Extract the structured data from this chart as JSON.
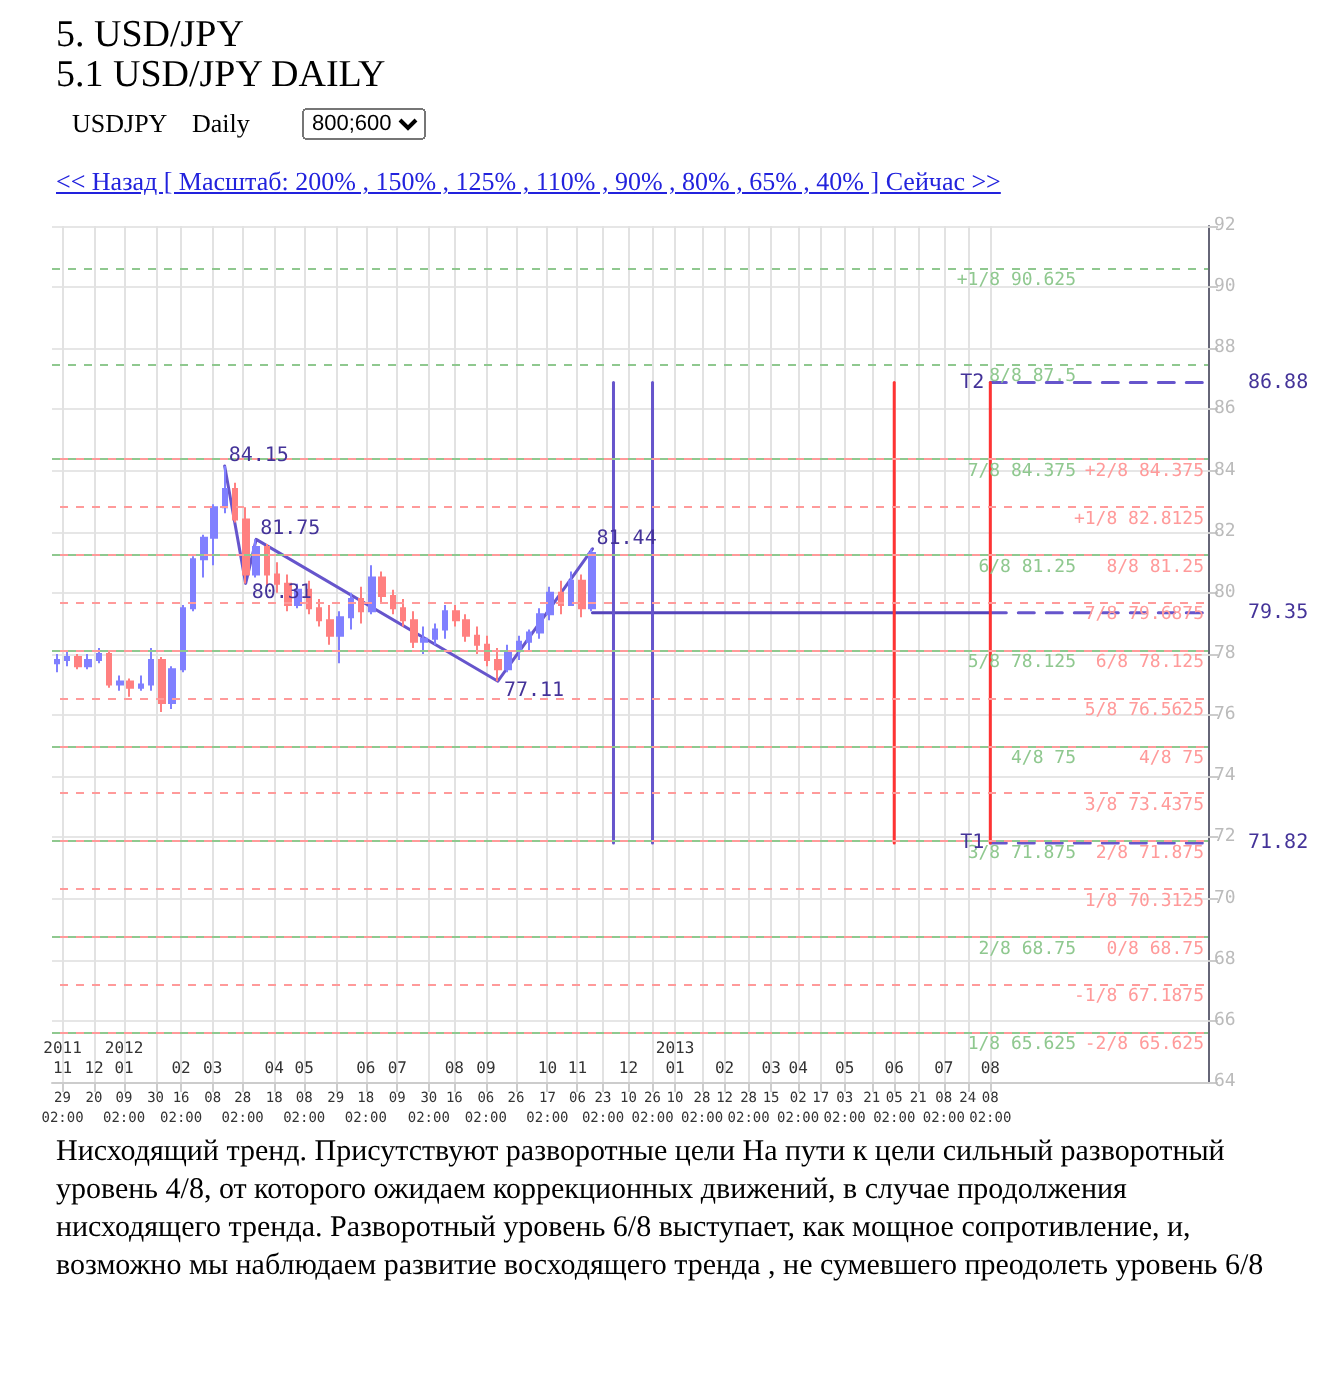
{
  "chart_data": {
    "type": "candlestick",
    "title": "5. USD/JPY",
    "subtitle": "5.1 USD/JPY DAILY",
    "annotations": [
      "USDJPY",
      "Daily",
      "800;600",
      "<< Назад [ Масштаб: 200% , 150% , 125% , 110% , 90% , 80% , 65% , 40% ] Сейчас >>",
      "Нисходящий тренд. Присутствуют разворотные цели На пути к цели сильный разворотный уровень 4/8, от которого ожидаем коррекционных движений, в случае продолжения нисходящего тренда. Разворотный уровень 6/8 выступает, как мощное сопротивление, и, возможно мы наблюдаем развитие восходящего тренда , не сумевшего преодолеть уровень 6/8",
      {
        "text": "84.15",
        "x": "2012-03-16",
        "y": 84.15
      },
      {
        "text": "80.31",
        "x": "2012-03-30",
        "y": 80.31
      },
      {
        "text": "81.75",
        "x": "2012-04-06",
        "y": 81.75
      },
      {
        "text": "77.11",
        "x": "2012-09-14",
        "y": 77.11
      },
      {
        "text": "81.44",
        "x": "2012-11-16",
        "y": 81.44
      },
      {
        "text": "T2",
        "x": "2013-08-08",
        "y": 86.88
      },
      {
        "text": "T1",
        "x": "2013-08-08",
        "y": 71.82
      },
      {
        "text": "86.88",
        "x": "2013-12-31",
        "y": 86.88
      },
      {
        "text": "79.35",
        "x": "2013-12-31",
        "y": 79.35
      },
      {
        "text": "71.82",
        "x": "2013-12-31",
        "y": 71.82
      }
    ],
    "xlim": [
      "2011-11-22",
      "2013-12-31"
    ],
    "xticks": [
      {
        "value": "2011-11-29",
        "label": "29\n02:00"
      },
      {
        "value": "2011-12-20",
        "label": "20"
      },
      {
        "value": "2012-01-09",
        "label": "09\n02:00"
      },
      {
        "value": "2012-01-30",
        "label": "30"
      },
      {
        "value": "2012-02-16",
        "label": "16\n02:00"
      },
      {
        "value": "2012-03-08",
        "label": "08"
      },
      {
        "value": "2012-03-28",
        "label": "28\n02:00"
      },
      {
        "value": "2012-04-18",
        "label": "18"
      },
      {
        "value": "2012-05-08",
        "label": "08\n02:00"
      },
      {
        "value": "2012-05-29",
        "label": "29"
      },
      {
        "value": "2012-06-18",
        "label": "18\n02:00"
      },
      {
        "value": "2012-07-09",
        "label": "09"
      },
      {
        "value": "2012-07-30",
        "label": "30\n02:00"
      },
      {
        "value": "2012-08-16",
        "label": "16"
      },
      {
        "value": "2012-09-06",
        "label": "06\n02:00"
      },
      {
        "value": "2012-09-26",
        "label": "26"
      },
      {
        "value": "2012-10-17",
        "label": "17\n02:00"
      },
      {
        "value": "2012-11-06",
        "label": "06"
      },
      {
        "value": "2012-11-23",
        "label": "23\n02:00"
      },
      {
        "value": "2012-12-10",
        "label": "10"
      },
      {
        "value": "2012-12-26",
        "label": "26\n02:00"
      },
      {
        "value": "2013-01-10",
        "label": "10"
      },
      {
        "value": "2013-01-28",
        "label": "28\n02:00"
      },
      {
        "value": "2013-02-12",
        "label": "12"
      },
      {
        "value": "2013-02-28",
        "label": "28\n02:00"
      },
      {
        "value": "2013-03-15",
        "label": "15"
      },
      {
        "value": "2013-04-02",
        "label": "02\n02:00"
      },
      {
        "value": "2013-04-17",
        "label": "17"
      },
      {
        "value": "2013-05-03",
        "label": "03\n02:00"
      },
      {
        "value": "2013-05-21",
        "label": "21"
      },
      {
        "value": "2013-06-05",
        "label": "05\n02:00"
      },
      {
        "value": "2013-06-21",
        "label": "21"
      },
      {
        "value": "2013-07-08",
        "label": "08\n02:00"
      },
      {
        "value": "2013-07-24",
        "label": "24"
      },
      {
        "value": "2013-08-08",
        "label": "08\n02:00"
      }
    ],
    "x2lim": [
      "2011-11-22",
      "2013-12-31"
    ],
    "x2ticks": [
      {
        "value": "2011-11-29",
        "label": "2011\n11"
      },
      {
        "value": "2011-12-20",
        "label": "12"
      },
      {
        "value": "2012-01-09",
        "label": "2012\n01"
      },
      {
        "value": "2012-02-16",
        "label": "02"
      },
      {
        "value": "2012-03-08",
        "label": "03"
      },
      {
        "value": "2012-04-18",
        "label": "04"
      },
      {
        "value": "2012-05-08",
        "label": "05"
      },
      {
        "value": "2012-06-18",
        "label": "06"
      },
      {
        "value": "2012-07-09",
        "label": "07"
      },
      {
        "value": "2012-08-16",
        "label": "08"
      },
      {
        "value": "2012-09-06",
        "label": "09"
      },
      {
        "value": "2012-10-17",
        "label": "10"
      },
      {
        "value": "2012-11-06",
        "label": "11"
      },
      {
        "value": "2012-12-10",
        "label": "12"
      },
      {
        "value": "2013-01-10",
        "label": "2013\n01"
      },
      {
        "value": "2013-02-12",
        "label": "02"
      },
      {
        "value": "2013-03-15",
        "label": "03"
      },
      {
        "value": "2013-04-02",
        "label": "04"
      },
      {
        "value": "2013-05-03",
        "label": "05"
      },
      {
        "value": "2013-06-05",
        "label": "06"
      },
      {
        "value": "2013-07-08",
        "label": "07"
      },
      {
        "value": "2013-08-08",
        "label": "08"
      }
    ],
    "ylim": [
      64,
      92
    ],
    "yticks": [
      64,
      66,
      68,
      70,
      72,
      74,
      76,
      78,
      80,
      82,
      84,
      86,
      88,
      90,
      92
    ],
    "grid": true,
    "series": [
      {
        "x": [
          "2011-11-25",
          "2011-12-02",
          "2011-12-09",
          "2011-12-16",
          "2011-12-23",
          "2011-12-30",
          "2012-01-06",
          "2012-01-13",
          "2012-01-20",
          "2012-01-27",
          "2012-02-03",
          "2012-02-10",
          "2012-02-17",
          "2012-02-24",
          "2012-03-02",
          "2012-03-09",
          "2012-03-16",
          "2012-03-23",
          "2012-03-30",
          "2012-04-06",
          "2012-04-13",
          "2012-04-20",
          "2012-04-27",
          "2012-05-04",
          "2012-05-11",
          "2012-05-18",
          "2012-05-25",
          "2012-06-01",
          "2012-06-08",
          "2012-06-15",
          "2012-06-22",
          "2012-06-29",
          "2012-07-06",
          "2012-07-13",
          "2012-07-20",
          "2012-07-27",
          "2012-08-03",
          "2012-08-10",
          "2012-08-17",
          "2012-08-24",
          "2012-08-31",
          "2012-09-07",
          "2012-09-14",
          "2012-09-21",
          "2012-09-28",
          "2012-10-05",
          "2012-10-12",
          "2012-10-19",
          "2012-10-26",
          "2012-11-02",
          "2012-11-09",
          "2012-11-16"
        ],
        "ohlc": [
          [
            77.7,
            78.0,
            77.4,
            77.8
          ],
          [
            77.8,
            78.1,
            77.6,
            77.9
          ],
          [
            77.9,
            78.0,
            77.5,
            77.6
          ],
          [
            77.6,
            78.0,
            77.5,
            77.8
          ],
          [
            77.8,
            78.2,
            77.7,
            78.0
          ],
          [
            78.0,
            78.1,
            76.9,
            77.0
          ],
          [
            77.0,
            77.3,
            76.8,
            77.1
          ],
          [
            77.1,
            77.2,
            76.6,
            76.9
          ],
          [
            76.9,
            77.3,
            76.8,
            77.0
          ],
          [
            77.0,
            78.2,
            76.8,
            77.8
          ],
          [
            77.8,
            77.9,
            76.1,
            76.4
          ],
          [
            76.4,
            77.6,
            76.2,
            77.5
          ],
          [
            77.5,
            79.6,
            77.4,
            79.5
          ],
          [
            79.5,
            81.2,
            79.4,
            81.1
          ],
          [
            81.1,
            81.9,
            80.5,
            81.8
          ],
          [
            81.8,
            82.9,
            80.9,
            82.8
          ],
          [
            82.8,
            84.15,
            82.6,
            83.4
          ],
          [
            83.4,
            83.6,
            82.3,
            82.4
          ],
          [
            82.4,
            82.8,
            80.31,
            80.6
          ],
          [
            80.6,
            81.75,
            80.5,
            81.5
          ],
          [
            81.5,
            81.6,
            80.2,
            80.6
          ],
          [
            80.6,
            81.0,
            80.0,
            80.3
          ],
          [
            80.3,
            80.6,
            79.4,
            79.6
          ],
          [
            79.6,
            80.3,
            79.5,
            80.1
          ],
          [
            80.1,
            80.4,
            79.3,
            79.5
          ],
          [
            79.5,
            79.8,
            78.9,
            79.1
          ],
          [
            79.1,
            79.6,
            78.3,
            78.6
          ],
          [
            78.6,
            79.4,
            77.7,
            79.2
          ],
          [
            79.2,
            80.0,
            78.8,
            79.8
          ],
          [
            79.8,
            80.2,
            79.0,
            79.4
          ],
          [
            79.4,
            80.9,
            79.3,
            80.5
          ],
          [
            80.5,
            80.7,
            79.7,
            79.9
          ],
          [
            79.9,
            80.1,
            79.3,
            79.5
          ],
          [
            79.5,
            79.8,
            78.9,
            79.1
          ],
          [
            79.1,
            79.4,
            78.2,
            78.4
          ],
          [
            78.4,
            78.9,
            78.0,
            78.5
          ],
          [
            78.5,
            79.0,
            78.3,
            78.8
          ],
          [
            78.8,
            79.6,
            78.5,
            79.4
          ],
          [
            79.4,
            79.6,
            78.9,
            79.1
          ],
          [
            79.1,
            79.3,
            78.4,
            78.6
          ],
          [
            78.6,
            78.9,
            78.0,
            78.3
          ],
          [
            78.3,
            78.6,
            77.6,
            77.8
          ],
          [
            77.8,
            78.2,
            77.11,
            77.5
          ],
          [
            77.5,
            78.3,
            77.4,
            78.1
          ],
          [
            78.1,
            78.6,
            77.8,
            78.4
          ],
          [
            78.4,
            78.8,
            78.1,
            78.7
          ],
          [
            78.7,
            79.5,
            78.5,
            79.3
          ],
          [
            79.3,
            80.2,
            79.1,
            80.0
          ],
          [
            80.0,
            80.4,
            79.3,
            79.6
          ],
          [
            79.6,
            80.7,
            79.6,
            80.4
          ],
          [
            80.4,
            80.6,
            79.2,
            79.5
          ],
          [
            79.5,
            81.44,
            79.4,
            81.3
          ]
        ],
        "colors": [
          "#8080ff",
          "#8080ff",
          "#ff8080",
          "#8080ff",
          "#8080ff",
          "#ff8080",
          "#8080ff",
          "#ff8080",
          "#8080ff",
          "#8080ff",
          "#ff8080",
          "#8080ff",
          "#8080ff",
          "#8080ff",
          "#8080ff",
          "#8080ff",
          "#8080ff",
          "#ff8080",
          "#ff8080",
          "#8080ff",
          "#ff8080",
          "#ff8080",
          "#ff8080",
          "#8080ff",
          "#ff8080",
          "#ff8080",
          "#ff8080",
          "#8080ff",
          "#8080ff",
          "#ff8080",
          "#8080ff",
          "#ff8080",
          "#ff8080",
          "#ff8080",
          "#ff8080",
          "#8080ff",
          "#8080ff",
          "#8080ff",
          "#ff8080",
          "#ff8080",
          "#ff8080",
          "#ff8080",
          "#ff8080",
          "#8080ff",
          "#8080ff",
          "#8080ff",
          "#8080ff",
          "#8080ff",
          "#ff8080",
          "#8080ff",
          "#ff8080",
          "#8080ff"
        ]
      },
      {
        "type": "line",
        "color": "#6655cc",
        "x": [
          "2012-03-16",
          "2012-03-30",
          "2012-04-06",
          "2012-09-14",
          "2012-11-16"
        ],
        "values": [
          84.15,
          80.31,
          81.75,
          77.11,
          81.44
        ]
      },
      {
        "type": "line",
        "color": "#5544bb",
        "x": [
          "2012-11-16",
          "2013-08-08"
        ],
        "values": [
          79.35,
          79.35
        ]
      },
      {
        "type": "line",
        "color": "#6655cc",
        "line_style": "dashed",
        "x": [
          "2013-08-08",
          "2013-12-31"
        ],
        "values": [
          79.35,
          79.35
        ]
      },
      {
        "type": "line",
        "color": "#6655cc",
        "line_style": "dashed",
        "x": [
          "2013-08-08",
          "2013-12-31"
        ],
        "values": [
          86.88,
          86.88
        ]
      },
      {
        "type": "line",
        "color": "#6655cc",
        "line_style": "dashed",
        "x": [
          "2013-08-08",
          "2013-12-31"
        ],
        "values": [
          71.82,
          71.82
        ]
      },
      {
        "type": "line",
        "color": "#6655cc",
        "x": [
          "2012-11-30",
          "2012-11-30"
        ],
        "values": [
          86.88,
          71.82
        ]
      },
      {
        "type": "line",
        "color": "#6655cc",
        "x": [
          "2012-12-26",
          "2012-12-26"
        ],
        "values": [
          86.88,
          71.82
        ]
      },
      {
        "type": "line",
        "color": "#ff3333",
        "x": [
          "2013-06-05",
          "2013-06-05"
        ],
        "values": [
          86.88,
          71.82
        ]
      },
      {
        "type": "line",
        "color": "#ff3333",
        "x": [
          "2013-08-08",
          "2013-08-08"
        ],
        "values": [
          86.88,
          71.82
        ]
      }
    ],
    "ref_lines": [
      {
        "axis": "y",
        "value": 90.625,
        "label": "+1/8 90.625",
        "color": "#8fc88f",
        "line_style": "dashed"
      },
      {
        "axis": "y",
        "value": 87.5,
        "label": "8/8 87.5",
        "color": "#8fc88f",
        "line_style": "dashed"
      },
      {
        "axis": "y",
        "value": 84.375,
        "label": "7/8 84.375",
        "color": "#8fc88f",
        "line_style": "dashed"
      },
      {
        "axis": "y",
        "value": 81.25,
        "label": "6/8 81.25",
        "color": "#8fc88f",
        "line_style": "dashed"
      },
      {
        "axis": "y",
        "value": 78.125,
        "label": "5/8 78.125",
        "color": "#8fc88f",
        "line_style": "dashed"
      },
      {
        "axis": "y",
        "value": 75,
        "label": "4/8 75",
        "color": "#8fc88f",
        "line_style": "dashed"
      },
      {
        "axis": "y",
        "value": 71.875,
        "label": "3/8 71.875",
        "color": "#8fc88f",
        "line_style": "dashed"
      },
      {
        "axis": "y",
        "value": 68.75,
        "label": "2/8 68.75",
        "color": "#8fc88f",
        "line_style": "dashed"
      },
      {
        "axis": "y",
        "value": 65.625,
        "label": "1/8 65.625",
        "color": "#8fc88f",
        "line_style": "dashed"
      },
      {
        "axis": "y",
        "value": 84.375,
        "label": "+2/8 84.375",
        "color": "#ff9a9a",
        "line_style": "dashed"
      },
      {
        "axis": "y",
        "value": 82.8125,
        "label": "+1/8 82.8125",
        "color": "#ff9a9a",
        "line_style": "dashed"
      },
      {
        "axis": "y",
        "value": 81.25,
        "label": "8/8 81.25",
        "color": "#ff9a9a",
        "line_style": "dashed"
      },
      {
        "axis": "y",
        "value": 79.6875,
        "label": "7/8 79.6875",
        "color": "#ff9a9a",
        "line_style": "dashed"
      },
      {
        "axis": "y",
        "value": 78.125,
        "label": "6/8 78.125",
        "color": "#ff9a9a",
        "line_style": "dashed"
      },
      {
        "axis": "y",
        "value": 76.5625,
        "label": "5/8 76.5625",
        "color": "#ff9a9a",
        "line_style": "dashed"
      },
      {
        "axis": "y",
        "value": 75,
        "label": "4/8 75",
        "color": "#ff9a9a",
        "line_style": "dashed"
      },
      {
        "axis": "y",
        "value": 73.4375,
        "label": "3/8 73.4375",
        "color": "#ff9a9a",
        "line_style": "dashed"
      },
      {
        "axis": "y",
        "value": 71.875,
        "label": "2/8 71.875",
        "color": "#ff9a9a",
        "line_style": "dashed"
      },
      {
        "axis": "y",
        "value": 70.3125,
        "label": "1/8 70.3125",
        "color": "#ff9a9a",
        "line_style": "dashed"
      },
      {
        "axis": "y",
        "value": 68.75,
        "label": "0/8 68.75",
        "color": "#ff9a9a",
        "line_style": "dashed"
      },
      {
        "axis": "y",
        "value": 67.1875,
        "label": "-1/8 67.1875",
        "color": "#ff9a9a",
        "line_style": "dashed"
      },
      {
        "axis": "y",
        "value": 65.625,
        "label": "-2/8 65.625",
        "color": "#ff9a9a",
        "line_style": "dashed"
      }
    ]
  }
}
